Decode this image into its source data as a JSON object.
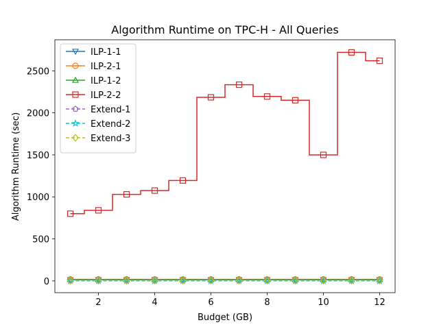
{
  "chart_data": {
    "type": "line",
    "title": "Algorithm Runtime on TPC-H - All Queries",
    "xlabel": "Budget (GB)",
    "ylabel": "Algorithm Runtime (sec)",
    "xlim": [
      0.45,
      12.55
    ],
    "ylim": [
      -140,
      2870
    ],
    "xticks": [
      2,
      4,
      6,
      8,
      10,
      12
    ],
    "yticks": [
      0,
      500,
      1000,
      1500,
      2000,
      2500
    ],
    "grid": false,
    "legend_position": "upper-left",
    "x": [
      1,
      2,
      3,
      4,
      5,
      6,
      7,
      8,
      9,
      10,
      11,
      12
    ],
    "series": [
      {
        "name": "ILP-1-1",
        "color": "#1f77b4",
        "marker": "triangle-down",
        "linestyle": "solid",
        "step": true,
        "values": [
          14,
          14,
          14,
          14,
          14,
          14,
          14,
          14,
          14,
          14,
          14,
          14
        ]
      },
      {
        "name": "ILP-2-1",
        "color": "#ff7f0e",
        "marker": "circle",
        "linestyle": "solid",
        "step": true,
        "values": [
          18,
          18,
          18,
          18,
          18,
          18,
          18,
          18,
          18,
          18,
          18,
          18
        ]
      },
      {
        "name": "ILP-1-2",
        "color": "#2ca02c",
        "marker": "triangle-up",
        "linestyle": "solid",
        "step": true,
        "values": [
          16,
          16,
          16,
          16,
          16,
          16,
          16,
          16,
          16,
          16,
          16,
          16
        ]
      },
      {
        "name": "ILP-2-2",
        "color": "#d62728",
        "marker": "square",
        "linestyle": "solid",
        "step": true,
        "values": [
          800,
          840,
          1030,
          1075,
          1195,
          2185,
          2335,
          2195,
          2150,
          1500,
          2720,
          2620
        ]
      },
      {
        "name": "Extend-1",
        "color": "#9467bd",
        "marker": "pentagon",
        "linestyle": "dashed",
        "step": false,
        "values": [
          3,
          3,
          3,
          3,
          3,
          3,
          3,
          3,
          3,
          3,
          3,
          3
        ]
      },
      {
        "name": "Extend-2",
        "color": "#17becf",
        "marker": "star",
        "linestyle": "dashed",
        "step": false,
        "values": [
          1,
          1,
          1,
          1,
          1,
          1,
          1,
          1,
          1,
          1,
          1,
          1
        ]
      },
      {
        "name": "Extend-3",
        "color": "#bcbd22",
        "marker": "diamond",
        "linestyle": "dashed",
        "step": false,
        "values": [
          4,
          4,
          4,
          4,
          4,
          4,
          4,
          4,
          4,
          4,
          4,
          4
        ]
      }
    ]
  }
}
